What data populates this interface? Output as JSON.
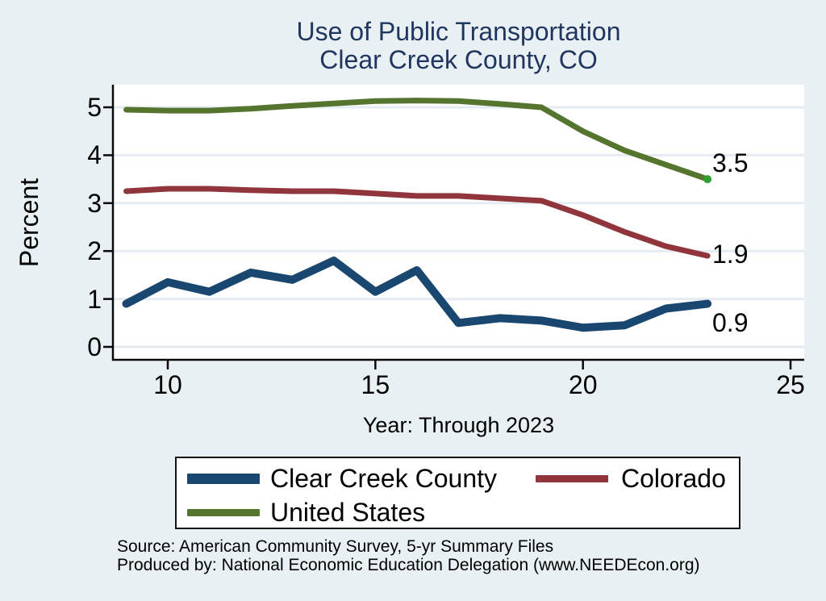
{
  "title": {
    "line1": "Use of Public Transportation",
    "line2": "Clear Creek County, CO"
  },
  "chart_data": {
    "type": "line",
    "title": "Use of Public Transportation",
    "subtitle": "Clear Creek County, CO",
    "xlabel": "Year: Through 2023",
    "ylabel": "Percent",
    "x": [
      2009,
      2010,
      2011,
      2012,
      2013,
      2014,
      2015,
      2016,
      2017,
      2018,
      2019,
      2020,
      2021,
      2022,
      2023
    ],
    "xticks": [
      10,
      15,
      20,
      25
    ],
    "yticks": [
      0,
      1,
      2,
      3,
      4,
      5
    ],
    "xlim": [
      8.7,
      25.3
    ],
    "ylim": [
      0,
      5.45
    ],
    "grid": "horizontal",
    "legend_position": "bottom",
    "series": [
      {
        "name": "Clear Creek County",
        "color": "#1a476f",
        "line_width": 10,
        "end_label": "0.9",
        "end_label_dy": 23,
        "end_dot": false,
        "values": [
          0.9,
          1.35,
          1.15,
          1.55,
          1.4,
          1.8,
          1.15,
          1.6,
          0.5,
          0.6,
          0.55,
          0.4,
          0.45,
          0.8,
          0.9
        ]
      },
      {
        "name": "Colorado",
        "color": "#90353b",
        "line_width": 7,
        "end_label": "1.9",
        "end_label_dy": -2,
        "end_dot": false,
        "values": [
          3.25,
          3.3,
          3.3,
          3.27,
          3.25,
          3.25,
          3.2,
          3.15,
          3.15,
          3.1,
          3.05,
          2.75,
          2.4,
          2.1,
          1.9
        ]
      },
      {
        "name": "United States",
        "color": "#55752f",
        "line_width": 7,
        "end_label": "3.5",
        "end_label_dy": -20,
        "end_dot": true,
        "values": [
          4.95,
          4.93,
          4.93,
          4.97,
          5.03,
          5.08,
          5.13,
          5.14,
          5.13,
          5.07,
          5.0,
          4.5,
          4.1,
          3.8,
          3.5
        ]
      }
    ]
  },
  "legend": {
    "items": [
      {
        "label": "Clear Creek County"
      },
      {
        "label": "Colorado"
      },
      {
        "label": "United States"
      }
    ]
  },
  "footer": {
    "source": "Source: American Community Survey, 5-yr Summary Files",
    "produced_by": "Produced by: National Economic Education Delegation (www.NEEDEcon.org)"
  },
  "colors": {
    "background": "#e9f0f4",
    "plot_background": "#ffffff",
    "grid": "#e4ebf2",
    "axis": "#0a0a0a",
    "title": "#21365f",
    "text": "#000000",
    "end_dot": "#2e9e2e"
  }
}
